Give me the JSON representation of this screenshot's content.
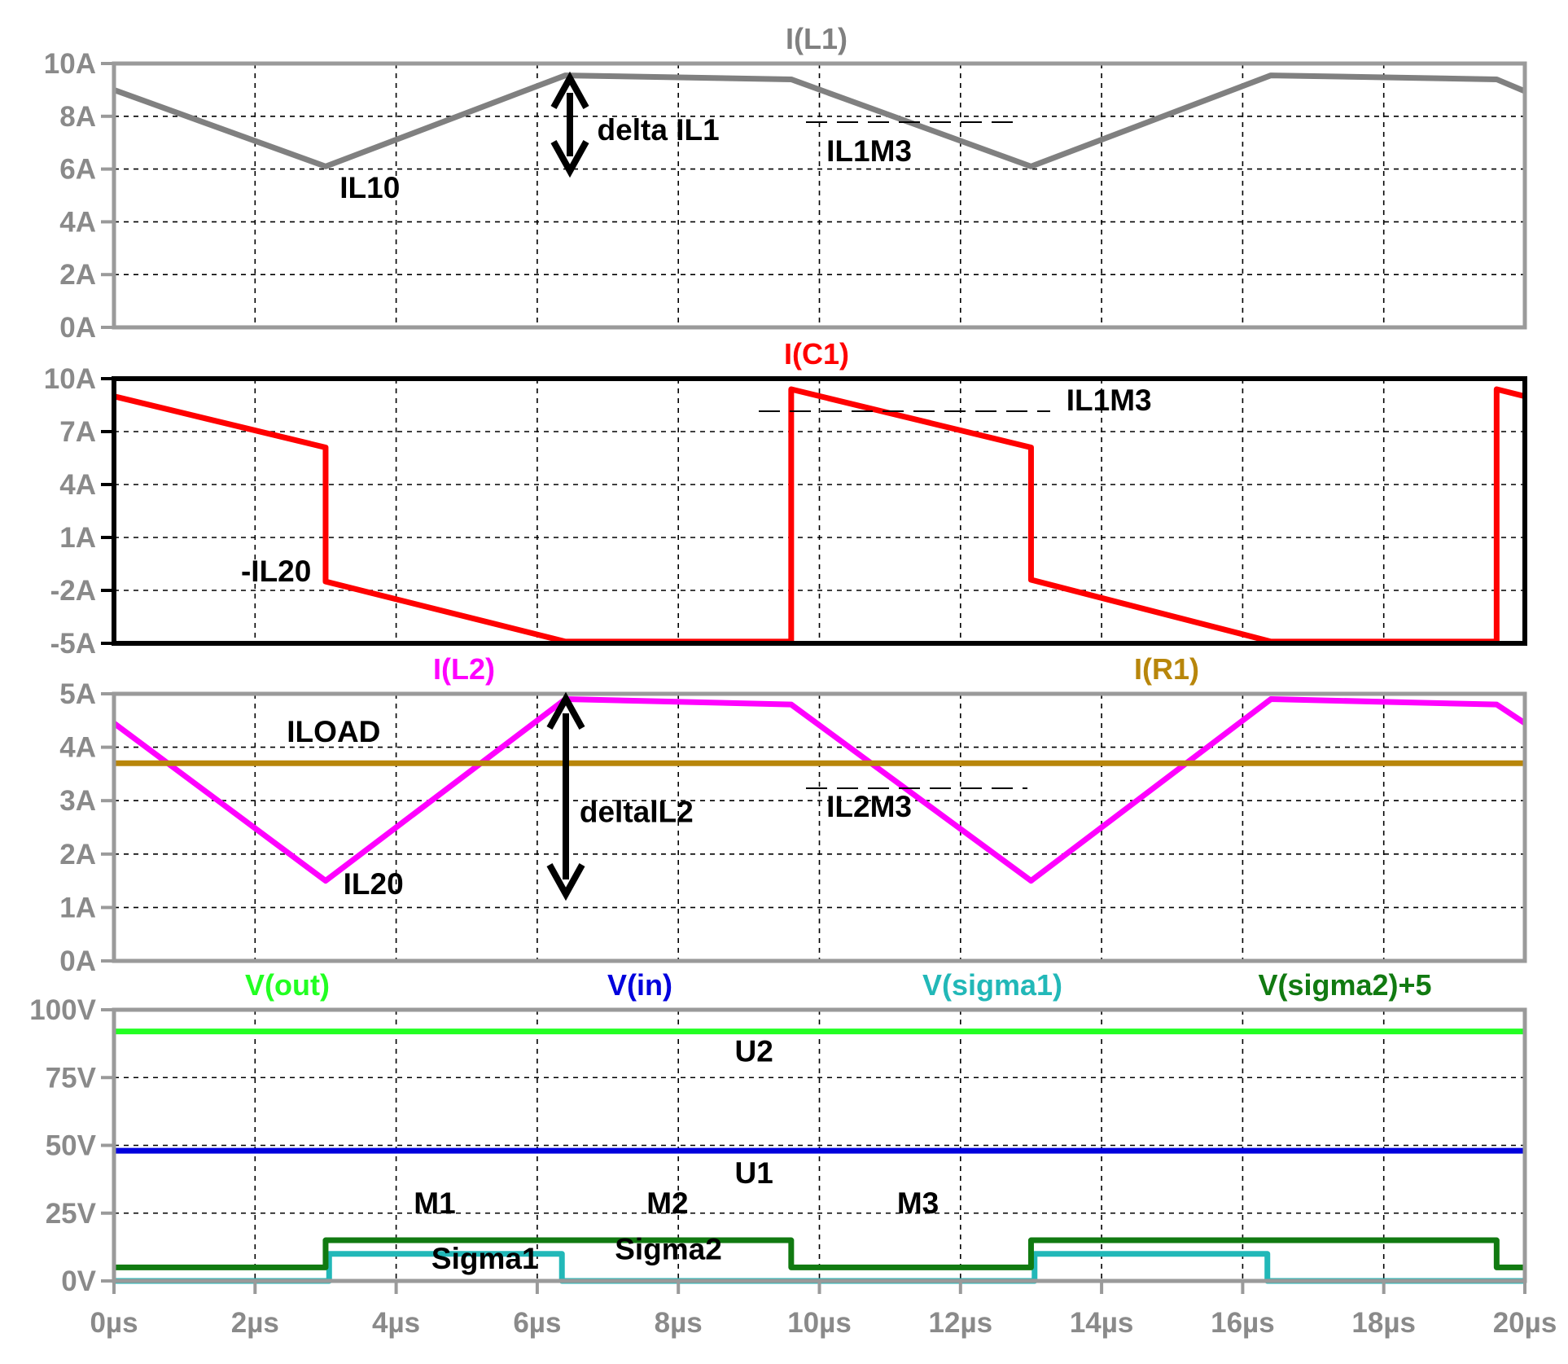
{
  "chart_data": [
    {
      "type": "line",
      "xlim": [
        0,
        20
      ],
      "x_ticks": [
        "0µs",
        "2µs",
        "4µs",
        "6µs",
        "8µs",
        "10µs",
        "12µs",
        "14µs",
        "16µs",
        "18µs",
        "20µs"
      ],
      "ylim": [
        0,
        10
      ],
      "y_ticks": [
        {
          "value": 0,
          "label": "0A"
        },
        {
          "value": 2,
          "label": "2A"
        },
        {
          "value": 4,
          "label": "4A"
        },
        {
          "value": 6,
          "label": "6A"
        },
        {
          "value": 8,
          "label": "8A"
        },
        {
          "value": 10,
          "label": "10A"
        }
      ],
      "grid": true,
      "frame_color": "#9a9a9a",
      "series": [
        {
          "name": "I(L1)",
          "color": "#808080",
          "x": [
            0,
            3.0,
            6.4,
            9.6,
            13.0,
            16.4,
            19.6,
            20
          ],
          "y": [
            9.0,
            6.1,
            9.55,
            9.4,
            6.1,
            9.55,
            9.4,
            8.95
          ]
        }
      ],
      "annotations": [
        {
          "text": "IL10",
          "x": 3.2,
          "y": 4.9
        },
        {
          "text": "delta IL1",
          "x": 6.85,
          "y": 7.1
        },
        {
          "text": "IL1M3",
          "x": 10.1,
          "y": 6.3
        }
      ]
    },
    {
      "type": "line",
      "xlim": [
        0,
        20
      ],
      "ylim": [
        -5,
        10
      ],
      "y_ticks": [
        {
          "value": -5,
          "label": "-5A"
        },
        {
          "value": -2,
          "label": "-2A"
        },
        {
          "value": 1,
          "label": "1A"
        },
        {
          "value": 4,
          "label": "4A"
        },
        {
          "value": 7,
          "label": "7A"
        },
        {
          "value": 10,
          "label": "10A"
        }
      ],
      "grid": true,
      "frame_color": "#000000",
      "series": [
        {
          "name": "I(C1)",
          "color": "#ff0000",
          "x": [
            0,
            3.0,
            3.0,
            6.4,
            9.6,
            9.6,
            13.0,
            13.0,
            16.4,
            19.6,
            19.6,
            20
          ],
          "y": [
            9.0,
            6.1,
            -1.5,
            -4.9,
            -4.9,
            9.4,
            6.1,
            -1.4,
            -4.9,
            -4.9,
            9.4,
            9.0
          ]
        }
      ],
      "annotations": [
        {
          "text": "-IL20",
          "x": 1.8,
          "y": -1.5
        },
        {
          "text": "IL1M3",
          "x": 13.5,
          "y": 8.2
        }
      ]
    },
    {
      "type": "line",
      "xlim": [
        0,
        20
      ],
      "ylim": [
        0,
        5
      ],
      "y_ticks": [
        {
          "value": 0,
          "label": "0A"
        },
        {
          "value": 1,
          "label": "1A"
        },
        {
          "value": 2,
          "label": "2A"
        },
        {
          "value": 3,
          "label": "3A"
        },
        {
          "value": 4,
          "label": "4A"
        },
        {
          "value": 5,
          "label": "5A"
        }
      ],
      "grid": true,
      "frame_color": "#9a9a9a",
      "series": [
        {
          "name": "I(L2)",
          "color": "#ff00ff",
          "x": [
            0,
            3.0,
            6.4,
            9.6,
            13.0,
            16.4,
            19.6,
            20
          ],
          "y": [
            4.45,
            1.5,
            4.9,
            4.8,
            1.5,
            4.9,
            4.8,
            4.45
          ]
        },
        {
          "name": "I(R1)",
          "color": "#b8860b",
          "x": [
            0,
            20
          ],
          "y": [
            3.7,
            3.7
          ]
        }
      ],
      "annotations": [
        {
          "text": "ILOAD",
          "x": 2.45,
          "y": 4.1
        },
        {
          "text": "deltaIL2",
          "x": 6.6,
          "y": 2.6
        },
        {
          "text": "IL2M3",
          "x": 10.1,
          "y": 2.7
        },
        {
          "text": "IL20",
          "x": 3.25,
          "y": 1.25
        }
      ]
    },
    {
      "type": "line",
      "xlim": [
        0,
        20
      ],
      "ylim": [
        0,
        100
      ],
      "y_ticks": [
        {
          "value": 0,
          "label": "0V"
        },
        {
          "value": 25,
          "label": "25V"
        },
        {
          "value": 50,
          "label": "50V"
        },
        {
          "value": 75,
          "label": "75V"
        },
        {
          "value": 100,
          "label": "100V"
        }
      ],
      "grid": true,
      "frame_color": "#9a9a9a",
      "series": [
        {
          "name": "V(out)",
          "color": "#22ff22",
          "x": [
            0,
            20
          ],
          "y": [
            92,
            92
          ]
        },
        {
          "name": "V(in)",
          "color": "#0000dd",
          "x": [
            0,
            20
          ],
          "y": [
            48,
            48
          ]
        },
        {
          "name": "V(sigma1)",
          "color": "#22b8b8",
          "x": [
            0,
            3.05,
            3.05,
            6.35,
            6.35,
            13.05,
            13.05,
            16.35,
            16.35,
            20
          ],
          "y": [
            0,
            0,
            10,
            10,
            0,
            0,
            10,
            10,
            0,
            0
          ]
        },
        {
          "name": "V(sigma2)+5",
          "color": "#117a11",
          "x": [
            0,
            3.0,
            3.0,
            9.6,
            9.6,
            13.0,
            13.0,
            19.6,
            19.6,
            20
          ],
          "y": [
            5,
            5,
            15,
            15,
            5,
            5,
            15,
            15,
            5,
            5
          ]
        }
      ],
      "annotations": [
        {
          "text": "U2",
          "x": 8.8,
          "y": 81
        },
        {
          "text": "U1",
          "x": 8.8,
          "y": 36
        },
        {
          "text": "M1",
          "x": 4.25,
          "y": 25
        },
        {
          "text": "M2",
          "x": 7.55,
          "y": 25
        },
        {
          "text": "M3",
          "x": 11.1,
          "y": 25
        },
        {
          "text": "Sigma1",
          "x": 4.5,
          "y": 4.5
        },
        {
          "text": "Sigma2",
          "x": 7.1,
          "y": 8
        }
      ]
    }
  ]
}
